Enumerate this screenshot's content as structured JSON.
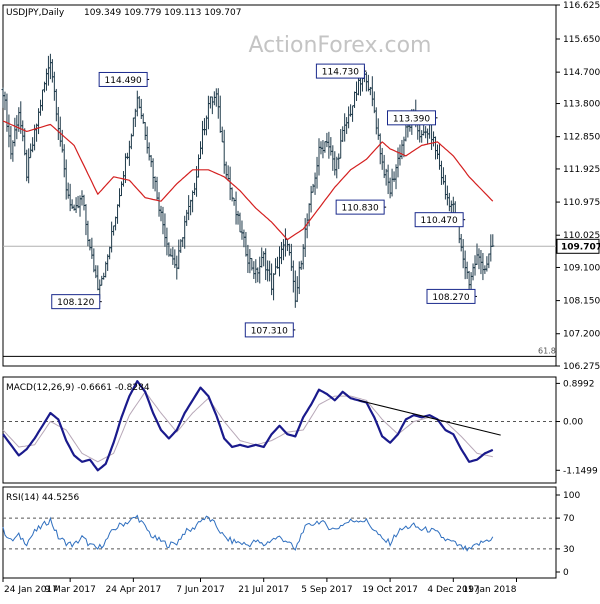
{
  "watermark": "ActionForex.com",
  "colors": {
    "candle": "#1f3a4a",
    "ma": "#d42020",
    "macd": "#1a1a8c",
    "signal": "#b8a8b8",
    "rsi": "#2f6fbf",
    "trendline": "#000000",
    "box_border": "#1a2a8c",
    "grid": "#999999",
    "price_badge": "#ffffff"
  },
  "chart_data": [
    {
      "type": "candlestick",
      "title": "USDJPY,Daily",
      "ohlc_readout": "109.349 109.779 109.113 109.707",
      "yticks": [
        "116.625",
        "115.650",
        "114.700",
        "113.800",
        "112.850",
        "111.925",
        "110.975",
        "110.025",
        "109.100",
        "108.150",
        "107.200",
        "106.275"
      ],
      "ylim": [
        106.275,
        116.625
      ],
      "current_price": "109.707",
      "current_price_value": 109.707,
      "fib_label": "61.8",
      "fib_level": 106.55,
      "close_path": [
        {
          "t": 0,
          "v": 114.2
        },
        {
          "t": 2,
          "v": 112.4
        },
        {
          "t": 4,
          "v": 113.6
        },
        {
          "t": 6,
          "v": 111.8
        },
        {
          "t": 8,
          "v": 112.9
        },
        {
          "t": 10,
          "v": 114.1
        },
        {
          "t": 12,
          "v": 115.1
        },
        {
          "t": 14,
          "v": 113.2
        },
        {
          "t": 16,
          "v": 111.4
        },
        {
          "t": 18,
          "v": 110.6
        },
        {
          "t": 20,
          "v": 111.1
        },
        {
          "t": 22,
          "v": 109.6
        },
        {
          "t": 24,
          "v": 108.6
        },
        {
          "t": 26,
          "v": 109.1
        },
        {
          "t": 28,
          "v": 110.3
        },
        {
          "t": 30,
          "v": 111.6
        },
        {
          "t": 32,
          "v": 112.7
        },
        {
          "t": 34,
          "v": 114.0
        },
        {
          "t": 36,
          "v": 113.0
        },
        {
          "t": 38,
          "v": 111.8
        },
        {
          "t": 40,
          "v": 110.6
        },
        {
          "t": 42,
          "v": 109.6
        },
        {
          "t": 44,
          "v": 109.1
        },
        {
          "t": 46,
          "v": 110.4
        },
        {
          "t": 48,
          "v": 111.1
        },
        {
          "t": 50,
          "v": 112.6
        },
        {
          "t": 52,
          "v": 113.8
        },
        {
          "t": 54,
          "v": 114.0
        },
        {
          "t": 56,
          "v": 112.2
        },
        {
          "t": 58,
          "v": 111.1
        },
        {
          "t": 60,
          "v": 110.2
        },
        {
          "t": 62,
          "v": 109.4
        },
        {
          "t": 64,
          "v": 108.9
        },
        {
          "t": 66,
          "v": 109.4
        },
        {
          "t": 68,
          "v": 108.6
        },
        {
          "t": 70,
          "v": 109.4
        },
        {
          "t": 72,
          "v": 109.9
        },
        {
          "t": 74,
          "v": 108.1
        },
        {
          "t": 76,
          "v": 109.8
        },
        {
          "t": 78,
          "v": 111.1
        },
        {
          "t": 80,
          "v": 112.4
        },
        {
          "t": 82,
          "v": 112.8
        },
        {
          "t": 84,
          "v": 111.9
        },
        {
          "t": 86,
          "v": 112.9
        },
        {
          "t": 88,
          "v": 113.6
        },
        {
          "t": 90,
          "v": 114.3
        },
        {
          "t": 92,
          "v": 114.6
        },
        {
          "t": 94,
          "v": 113.6
        },
        {
          "t": 96,
          "v": 112.1
        },
        {
          "t": 98,
          "v": 111.3
        },
        {
          "t": 100,
          "v": 112.2
        },
        {
          "t": 102,
          "v": 113.0
        },
        {
          "t": 104,
          "v": 113.4
        },
        {
          "t": 106,
          "v": 112.8
        },
        {
          "t": 108,
          "v": 113.1
        },
        {
          "t": 110,
          "v": 112.3
        },
        {
          "t": 112,
          "v": 111.2
        },
        {
          "t": 114,
          "v": 110.8
        },
        {
          "t": 116,
          "v": 109.6
        },
        {
          "t": 118,
          "v": 108.7
        },
        {
          "t": 120,
          "v": 109.4
        },
        {
          "t": 122,
          "v": 109.1
        },
        {
          "t": 124,
          "v": 109.7
        }
      ],
      "ma_path": [
        {
          "t": 0,
          "v": 113.3
        },
        {
          "t": 6,
          "v": 113.0
        },
        {
          "t": 12,
          "v": 113.2
        },
        {
          "t": 18,
          "v": 112.6
        },
        {
          "t": 24,
          "v": 111.2
        },
        {
          "t": 28,
          "v": 111.7
        },
        {
          "t": 32,
          "v": 111.6
        },
        {
          "t": 36,
          "v": 111.1
        },
        {
          "t": 40,
          "v": 111.0
        },
        {
          "t": 44,
          "v": 111.5
        },
        {
          "t": 48,
          "v": 111.9
        },
        {
          "t": 52,
          "v": 111.9
        },
        {
          "t": 56,
          "v": 111.7
        },
        {
          "t": 60,
          "v": 111.3
        },
        {
          "t": 64,
          "v": 110.8
        },
        {
          "t": 68,
          "v": 110.4
        },
        {
          "t": 72,
          "v": 109.9
        },
        {
          "t": 76,
          "v": 110.2
        },
        {
          "t": 80,
          "v": 110.8
        },
        {
          "t": 84,
          "v": 111.4
        },
        {
          "t": 88,
          "v": 111.9
        },
        {
          "t": 92,
          "v": 112.2
        },
        {
          "t": 96,
          "v": 112.7
        },
        {
          "t": 98,
          "v": 112.5
        },
        {
          "t": 102,
          "v": 112.3
        },
        {
          "t": 106,
          "v": 112.6
        },
        {
          "t": 110,
          "v": 112.7
        },
        {
          "t": 114,
          "v": 112.3
        },
        {
          "t": 118,
          "v": 111.7
        },
        {
          "t": 124,
          "v": 111.0
        }
      ],
      "annotations": [
        {
          "label": "114.490",
          "t": 37,
          "v": 114.49,
          "pos": "left-of"
        },
        {
          "label": "108.120",
          "t": 25,
          "v": 108.12,
          "pos": "left-of"
        },
        {
          "label": "107.310",
          "t": 74,
          "v": 107.31,
          "pos": "left-of"
        },
        {
          "label": "114.730",
          "t": 92,
          "v": 114.73,
          "pos": "left-of"
        },
        {
          "label": "110.830",
          "t": 97,
          "v": 110.83,
          "pos": "left-of"
        },
        {
          "label": "113.390",
          "t": 110,
          "v": 113.39,
          "pos": "left-of"
        },
        {
          "label": "110.470",
          "t": 117,
          "v": 110.47,
          "pos": "left-of"
        },
        {
          "label": "108.270",
          "t": 120,
          "v": 108.27,
          "pos": "left-of"
        }
      ]
    },
    {
      "type": "line",
      "title": "MACD(12,26,9) -0.6661 -0.8284",
      "yticks": [
        "0.8992",
        "0.00",
        "-1.1499"
      ],
      "ylim": [
        -1.1499,
        0.8992
      ],
      "zero_line": 0,
      "macd": [
        {
          "t": 0,
          "v": -0.3
        },
        {
          "t": 2,
          "v": -0.55
        },
        {
          "t": 4,
          "v": -0.8
        },
        {
          "t": 6,
          "v": -0.65
        },
        {
          "t": 8,
          "v": -0.4
        },
        {
          "t": 10,
          "v": -0.1
        },
        {
          "t": 12,
          "v": 0.2
        },
        {
          "t": 14,
          "v": 0.05
        },
        {
          "t": 16,
          "v": -0.45
        },
        {
          "t": 18,
          "v": -0.8
        },
        {
          "t": 20,
          "v": -0.95
        },
        {
          "t": 22,
          "v": -0.9
        },
        {
          "t": 24,
          "v": -1.15
        },
        {
          "t": 26,
          "v": -1.0
        },
        {
          "t": 28,
          "v": -0.5
        },
        {
          "t": 30,
          "v": 0.1
        },
        {
          "t": 32,
          "v": 0.6
        },
        {
          "t": 34,
          "v": 0.95
        },
        {
          "t": 36,
          "v": 0.7
        },
        {
          "t": 38,
          "v": 0.2
        },
        {
          "t": 40,
          "v": -0.2
        },
        {
          "t": 42,
          "v": -0.4
        },
        {
          "t": 44,
          "v": -0.2
        },
        {
          "t": 46,
          "v": 0.2
        },
        {
          "t": 48,
          "v": 0.5
        },
        {
          "t": 50,
          "v": 0.8
        },
        {
          "t": 52,
          "v": 0.6
        },
        {
          "t": 54,
          "v": 0.15
        },
        {
          "t": 56,
          "v": -0.4
        },
        {
          "t": 58,
          "v": -0.6
        },
        {
          "t": 60,
          "v": -0.55
        },
        {
          "t": 62,
          "v": -0.6
        },
        {
          "t": 64,
          "v": -0.55
        },
        {
          "t": 66,
          "v": -0.6
        },
        {
          "t": 68,
          "v": -0.3
        },
        {
          "t": 70,
          "v": -0.1
        },
        {
          "t": 72,
          "v": -0.3
        },
        {
          "t": 74,
          "v": -0.35
        },
        {
          "t": 76,
          "v": 0.1
        },
        {
          "t": 78,
          "v": 0.4
        },
        {
          "t": 80,
          "v": 0.75
        },
        {
          "t": 82,
          "v": 0.65
        },
        {
          "t": 84,
          "v": 0.5
        },
        {
          "t": 86,
          "v": 0.7
        },
        {
          "t": 88,
          "v": 0.55
        },
        {
          "t": 90,
          "v": 0.5
        },
        {
          "t": 92,
          "v": 0.45
        },
        {
          "t": 94,
          "v": 0.1
        },
        {
          "t": 96,
          "v": -0.35
        },
        {
          "t": 98,
          "v": -0.5
        },
        {
          "t": 100,
          "v": -0.3
        },
        {
          "t": 102,
          "v": 0.05
        },
        {
          "t": 104,
          "v": 0.15
        },
        {
          "t": 106,
          "v": 0.1
        },
        {
          "t": 108,
          "v": 0.15
        },
        {
          "t": 110,
          "v": 0.05
        },
        {
          "t": 112,
          "v": -0.2
        },
        {
          "t": 114,
          "v": -0.3
        },
        {
          "t": 116,
          "v": -0.65
        },
        {
          "t": 118,
          "v": -0.95
        },
        {
          "t": 120,
          "v": -0.9
        },
        {
          "t": 122,
          "v": -0.75
        },
        {
          "t": 124,
          "v": -0.67
        }
      ],
      "signal": [
        {
          "t": 0,
          "v": -0.2
        },
        {
          "t": 4,
          "v": -0.6
        },
        {
          "t": 8,
          "v": -0.55
        },
        {
          "t": 12,
          "v": 0.0
        },
        {
          "t": 16,
          "v": -0.2
        },
        {
          "t": 20,
          "v": -0.75
        },
        {
          "t": 24,
          "v": -0.95
        },
        {
          "t": 28,
          "v": -0.75
        },
        {
          "t": 32,
          "v": 0.15
        },
        {
          "t": 36,
          "v": 0.7
        },
        {
          "t": 40,
          "v": 0.2
        },
        {
          "t": 44,
          "v": -0.25
        },
        {
          "t": 48,
          "v": 0.2
        },
        {
          "t": 52,
          "v": 0.55
        },
        {
          "t": 56,
          "v": 0.0
        },
        {
          "t": 60,
          "v": -0.45
        },
        {
          "t": 64,
          "v": -0.55
        },
        {
          "t": 68,
          "v": -0.45
        },
        {
          "t": 72,
          "v": -0.25
        },
        {
          "t": 76,
          "v": -0.2
        },
        {
          "t": 80,
          "v": 0.4
        },
        {
          "t": 84,
          "v": 0.6
        },
        {
          "t": 88,
          "v": 0.6
        },
        {
          "t": 92,
          "v": 0.5
        },
        {
          "t": 96,
          "v": 0.05
        },
        {
          "t": 100,
          "v": -0.3
        },
        {
          "t": 104,
          "v": 0.0
        },
        {
          "t": 108,
          "v": 0.1
        },
        {
          "t": 112,
          "v": 0.0
        },
        {
          "t": 116,
          "v": -0.35
        },
        {
          "t": 120,
          "v": -0.75
        },
        {
          "t": 124,
          "v": -0.83
        }
      ],
      "trendline": [
        {
          "t": 90,
          "v": 0.5
        },
        {
          "t": 126,
          "v": -0.32
        }
      ]
    },
    {
      "type": "line",
      "title": "RSI(14) 44.5256",
      "yticks": [
        "100",
        "70",
        "30",
        "0"
      ],
      "ylim": [
        0,
        100
      ],
      "levels": [
        70,
        30
      ],
      "rsi": [
        {
          "t": 0,
          "v": 55
        },
        {
          "t": 2,
          "v": 40
        },
        {
          "t": 4,
          "v": 47
        },
        {
          "t": 6,
          "v": 38
        },
        {
          "t": 8,
          "v": 52
        },
        {
          "t": 10,
          "v": 60
        },
        {
          "t": 12,
          "v": 68
        },
        {
          "t": 14,
          "v": 45
        },
        {
          "t": 16,
          "v": 38
        },
        {
          "t": 18,
          "v": 35
        },
        {
          "t": 20,
          "v": 45
        },
        {
          "t": 22,
          "v": 35
        },
        {
          "t": 24,
          "v": 30
        },
        {
          "t": 26,
          "v": 40
        },
        {
          "t": 28,
          "v": 55
        },
        {
          "t": 30,
          "v": 62
        },
        {
          "t": 32,
          "v": 66
        },
        {
          "t": 34,
          "v": 72
        },
        {
          "t": 36,
          "v": 58
        },
        {
          "t": 38,
          "v": 45
        },
        {
          "t": 40,
          "v": 40
        },
        {
          "t": 42,
          "v": 35
        },
        {
          "t": 44,
          "v": 38
        },
        {
          "t": 46,
          "v": 52
        },
        {
          "t": 48,
          "v": 55
        },
        {
          "t": 50,
          "v": 68
        },
        {
          "t": 52,
          "v": 70
        },
        {
          "t": 54,
          "v": 60
        },
        {
          "t": 56,
          "v": 45
        },
        {
          "t": 58,
          "v": 40
        },
        {
          "t": 60,
          "v": 38
        },
        {
          "t": 62,
          "v": 35
        },
        {
          "t": 64,
          "v": 40
        },
        {
          "t": 66,
          "v": 35
        },
        {
          "t": 68,
          "v": 42
        },
        {
          "t": 70,
          "v": 45
        },
        {
          "t": 72,
          "v": 40
        },
        {
          "t": 74,
          "v": 28
        },
        {
          "t": 76,
          "v": 55
        },
        {
          "t": 78,
          "v": 62
        },
        {
          "t": 80,
          "v": 66
        },
        {
          "t": 82,
          "v": 60
        },
        {
          "t": 84,
          "v": 55
        },
        {
          "t": 86,
          "v": 62
        },
        {
          "t": 88,
          "v": 66
        },
        {
          "t": 90,
          "v": 68
        },
        {
          "t": 92,
          "v": 66
        },
        {
          "t": 94,
          "v": 55
        },
        {
          "t": 96,
          "v": 42
        },
        {
          "t": 98,
          "v": 38
        },
        {
          "t": 100,
          "v": 52
        },
        {
          "t": 102,
          "v": 58
        },
        {
          "t": 104,
          "v": 60
        },
        {
          "t": 106,
          "v": 55
        },
        {
          "t": 108,
          "v": 55
        },
        {
          "t": 110,
          "v": 50
        },
        {
          "t": 112,
          "v": 42
        },
        {
          "t": 114,
          "v": 38
        },
        {
          "t": 116,
          "v": 32
        },
        {
          "t": 118,
          "v": 28
        },
        {
          "t": 120,
          "v": 35
        },
        {
          "t": 122,
          "v": 40
        },
        {
          "t": 124,
          "v": 44.5
        }
      ]
    }
  ],
  "x_axis": {
    "labels": [
      {
        "label": "24 Jan 2017",
        "t": 0
      },
      {
        "label": "9 Mar 2017",
        "t": 17
      },
      {
        "label": "24 Apr 2017",
        "t": 33
      },
      {
        "label": "7 Jun 2017",
        "t": 50
      },
      {
        "label": "21 Jul 2017",
        "t": 66
      },
      {
        "label": "5 Sep 2017",
        "t": 82
      },
      {
        "label": "19 Oct 2017",
        "t": 98
      },
      {
        "label": "4 Dec 2017",
        "t": 114
      },
      {
        "label": "19 Jan 2018",
        "t": 130
      }
    ],
    "t_max": 140
  }
}
